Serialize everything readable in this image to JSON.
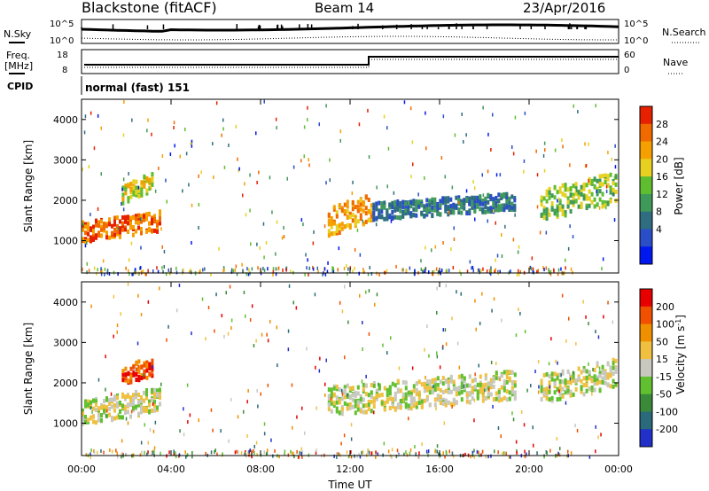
{
  "header": {
    "station": "Blackstone (fitACF)",
    "beam": "Beam 14",
    "date": "23/Apr/2016"
  },
  "noise_panel": {
    "left_label": "N.Sky",
    "right_label": "N.Search",
    "left_ticks": [
      "10^5",
      "10^0"
    ],
    "right_ticks": [
      "10^5",
      "10^0"
    ]
  },
  "freq_panel": {
    "left_label_line1": "Freq.",
    "left_label_line2": "[MHz]",
    "left_ticks": [
      "18",
      "8"
    ],
    "right_label": "Nave",
    "right_ticks": [
      "60",
      "0"
    ],
    "cpid_label": "CPID",
    "mode_text": "normal (fast) 151"
  },
  "chart_data": [
    {
      "type": "heatmap",
      "name": "power",
      "ylabel": "Slant Range [km]",
      "ylim": [
        200,
        4500
      ],
      "yticks": [
        "4000",
        "3000",
        "2000",
        "1000"
      ],
      "colorbar_label": "Power [dB]",
      "colorbar_ticks": [
        "28",
        "24",
        "20",
        "16",
        "12",
        "8",
        "4"
      ],
      "colors": [
        "#0018f0",
        "#2a4ec8",
        "#2f6d80",
        "#3f9a5a",
        "#5fbe30",
        "#e8d020",
        "#f5a000",
        "#f06a00",
        "#e62000"
      ],
      "bands": [
        {
          "t0": 0.0,
          "t1": 3.6,
          "r0": 1050,
          "r1": 1750,
          "level": 7
        },
        {
          "t0": 1.8,
          "t1": 3.2,
          "r0": 2000,
          "r1": 2700,
          "level": 5
        },
        {
          "t0": 11.0,
          "t1": 13.0,
          "r0": 1200,
          "r1": 2200,
          "level": 6
        },
        {
          "t0": 13.0,
          "t1": 19.4,
          "r0": 1600,
          "r1": 2200,
          "level": 2
        },
        {
          "t0": 20.5,
          "t1": 24.0,
          "r0": 1600,
          "r1": 2700,
          "level": 4
        }
      ]
    },
    {
      "type": "heatmap",
      "name": "velocity",
      "ylabel": "Slant Range [km]",
      "ylim": [
        200,
        4500
      ],
      "yticks": [
        "4000",
        "3000",
        "2000",
        "1000"
      ],
      "xlabel": "Time UT",
      "xlim": [
        0,
        24
      ],
      "xticks": [
        "00:00",
        "04:00",
        "08:00",
        "12:00",
        "16:00",
        "20:00",
        "00:00"
      ],
      "colorbar_label": "Velocity [m s^-1]",
      "colorbar_ticks": [
        "200",
        "100",
        "50",
        "15",
        "-15",
        "-50",
        "-100",
        "-200"
      ],
      "colors": [
        "#2030c8",
        "#2a6a7a",
        "#3a8a3a",
        "#60c030",
        "#c8c8c0",
        "#f0c040",
        "#f09000",
        "#f05000",
        "#e80000"
      ],
      "bands": [
        {
          "t0": 0.0,
          "t1": 3.6,
          "r0": 1050,
          "r1": 1900,
          "level": 4
        },
        {
          "t0": 1.8,
          "t1": 3.2,
          "r0": 2000,
          "r1": 2700,
          "level": 7
        },
        {
          "t0": 11.0,
          "t1": 19.4,
          "r0": 1300,
          "r1": 2300,
          "level": 4
        },
        {
          "t0": 20.5,
          "t1": 24.0,
          "r0": 1600,
          "r1": 2600,
          "level": 4
        }
      ]
    }
  ]
}
